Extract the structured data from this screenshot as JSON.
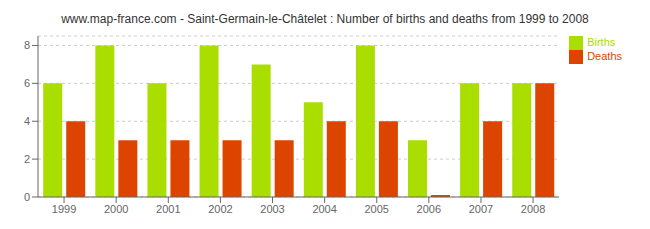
{
  "chart_data": {
    "type": "bar",
    "title": "www.map-france.com - Saint-Germain-le-Châtelet : Number of births and deaths from 1999 to 2008",
    "categories": [
      "1999",
      "2000",
      "2001",
      "2002",
      "2003",
      "2004",
      "2005",
      "2006",
      "2007",
      "2008"
    ],
    "series": [
      {
        "name": "Births",
        "color": "#aadd00",
        "values": [
          6,
          8,
          6,
          8,
          7,
          5,
          8,
          3,
          6,
          6
        ]
      },
      {
        "name": "Deaths",
        "color": "#dd4400",
        "values": [
          4,
          3,
          3,
          3,
          3,
          4,
          4,
          0.1,
          4,
          6
        ]
      }
    ],
    "ylim": [
      0,
      8.5
    ],
    "yticks": [
      0,
      2,
      4,
      6,
      8
    ],
    "grid": true,
    "legend": "upper right"
  }
}
